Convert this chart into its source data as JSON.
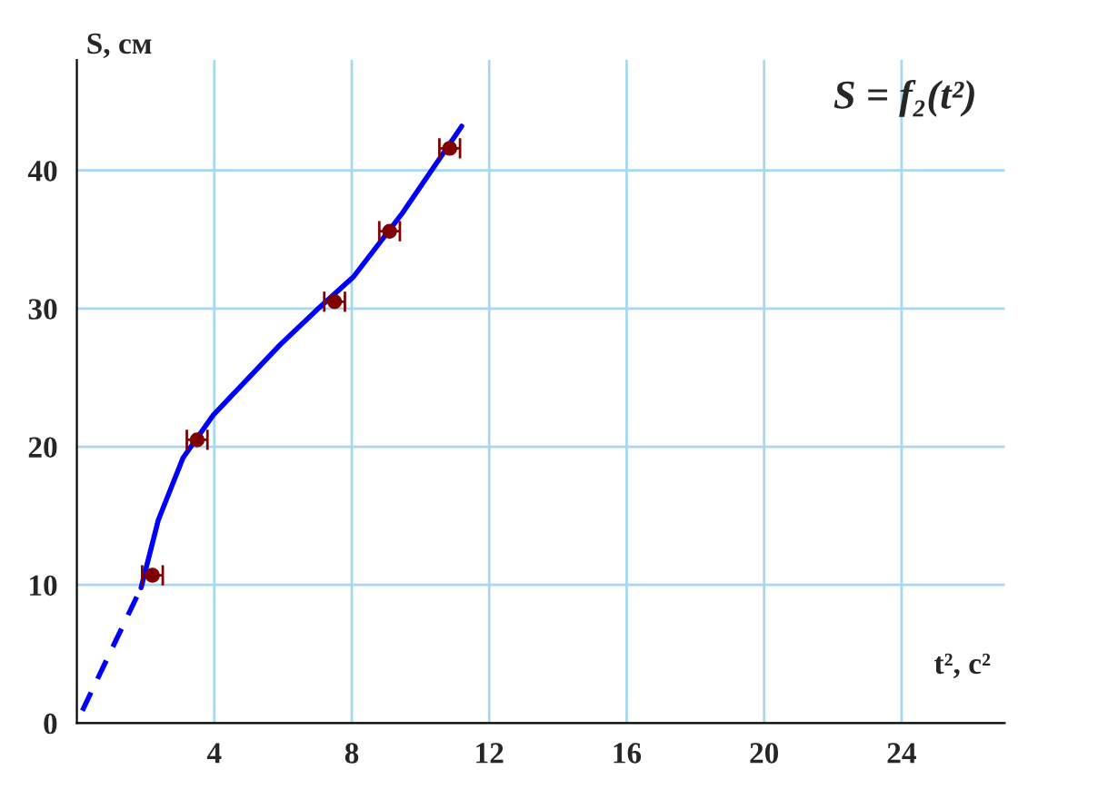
{
  "chart_data": {
    "type": "scatter",
    "title": "S = f₂(t²)",
    "xlabel": "t², с²",
    "ylabel": "S, см",
    "xlim": [
      0,
      27
    ],
    "ylim": [
      0,
      48
    ],
    "xticks": [
      4,
      8,
      12,
      16,
      20,
      24
    ],
    "yticks": [
      {
        "value": 0,
        "label": "0"
      },
      10,
      20,
      30,
      40
    ],
    "grid": true,
    "series": [
      {
        "color": "#800000",
        "marker": "circle",
        "x": [
          2.2,
          3.5,
          7.5,
          9.1,
          10.85
        ],
        "values": [
          10.7,
          20.5,
          30.5,
          35.6,
          41.6
        ],
        "xerrors": [
          0.3,
          0.3,
          0.3,
          0.3,
          0.3
        ]
      },
      {
        "type": "line",
        "color": "#0000ff",
        "line_style": "solid",
        "marker": "none",
        "x": [
          1.87,
          2.37,
          3.09,
          3.97,
          5.92,
          6.98,
          8.05,
          9.47,
          11.2
        ],
        "values": [
          9.8,
          14.7,
          19.2,
          22.3,
          27.4,
          29.9,
          32.3,
          36.9,
          43.2
        ]
      },
      {
        "type": "line",
        "color": "#0000ff",
        "line_style": "dashed",
        "marker": "none",
        "x": [
          0.16,
          1.87
        ],
        "values": [
          0.9,
          9.8
        ]
      }
    ]
  }
}
